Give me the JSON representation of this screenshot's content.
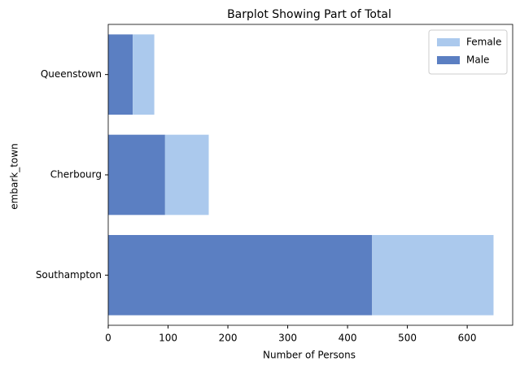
{
  "chart_data": {
    "type": "barh-stacked",
    "title": "Barplot Showing Part of Total",
    "xlabel": "Number of Persons",
    "ylabel": "embark_town",
    "categories": [
      "Queenstown",
      "Cherbourg",
      "Southampton"
    ],
    "series": [
      {
        "name": "Female",
        "color": "#abc9ed",
        "values": [
          36,
          73,
          203
        ]
      },
      {
        "name": "Male",
        "color": "#5b7fc2",
        "values": [
          41,
          95,
          441
        ]
      }
    ],
    "xlim": [
      0,
      676
    ],
    "xticks": [
      0,
      100,
      200,
      300,
      400,
      500,
      600
    ],
    "legend": "upper right",
    "grid": false
  }
}
